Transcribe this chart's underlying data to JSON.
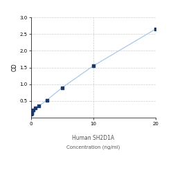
{
  "title": "",
  "xlabel_line1": "Human SH2D1A",
  "xlabel_line2": "Concentration (ng/ml)",
  "ylabel": "OD",
  "x_data": [
    0.0,
    0.078,
    0.156,
    0.313,
    0.625,
    1.25,
    2.5,
    5.0,
    10.0,
    20.0
  ],
  "y_data": [
    0.1,
    0.13,
    0.16,
    0.22,
    0.28,
    0.35,
    0.52,
    0.9,
    1.55,
    2.65
  ],
  "xlim": [
    0,
    20
  ],
  "ylim": [
    0,
    3
  ],
  "yticks": [
    0.5,
    1.0,
    1.5,
    2.0,
    2.5,
    3.0
  ],
  "xticks": [
    0,
    10,
    20
  ],
  "line_color": "#a8c8e8",
  "marker_color": "#1a3a6b",
  "background_color": "#ffffff",
  "grid_color": "#cccccc",
  "fig_width": 2.5,
  "fig_height": 2.5,
  "dpi": 100
}
